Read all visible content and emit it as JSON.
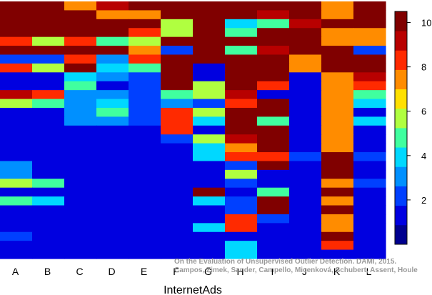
{
  "chart_data": {
    "type": "heatmap",
    "xlabel": "InternetAds",
    "columns": [
      "A",
      "B",
      "C",
      "D",
      "E",
      "F",
      "G",
      "H",
      "I",
      "J",
      "K",
      "L"
    ],
    "colorbar": {
      "min": 0,
      "max": 10.5,
      "ticks": [
        2,
        4,
        6,
        8,
        10
      ]
    },
    "palette": [
      "#00008f",
      "#0000e0",
      "#0040ff",
      "#0090ff",
      "#00d8ff",
      "#40ff9f",
      "#b0ff40",
      "#ffe000",
      "#ff8c00",
      "#ff2a00",
      "#b80000",
      "#800000"
    ],
    "rows": [
      [
        10.5,
        10.5,
        7,
        9.5,
        10.5,
        10.5,
        10.5,
        10.5,
        10.5,
        10.5,
        7,
        10.5
      ],
      [
        10.5,
        10.5,
        10.5,
        7,
        7,
        10.5,
        10.5,
        10.5,
        9.5,
        10.5,
        7,
        10.5
      ],
      [
        10.5,
        10.5,
        10.5,
        10.5,
        10.5,
        6,
        10.5,
        4,
        5,
        9.5,
        10.5,
        10.5
      ],
      [
        10.5,
        10.5,
        10.5,
        10.5,
        8,
        6,
        10.5,
        5,
        10.5,
        10.5,
        7,
        7
      ],
      [
        8,
        6,
        8,
        5,
        6,
        10.5,
        10.5,
        10.5,
        10.5,
        10.5,
        7,
        7
      ],
      [
        10.5,
        10.5,
        10.5,
        10.5,
        7,
        2.5,
        10.5,
        5,
        9.5,
        10.5,
        10.5,
        2.5
      ],
      [
        2.5,
        2.5,
        8,
        3,
        8,
        10.5,
        10.5,
        10.5,
        10.5,
        7,
        10.5,
        10.5
      ],
      [
        8,
        6,
        10.5,
        4,
        5,
        10.5,
        1.5,
        10.5,
        10.5,
        7,
        10.5,
        10.5
      ],
      [
        1,
        1,
        4,
        3,
        2,
        10.5,
        1.5,
        10.5,
        10.5,
        1,
        7,
        9.5
      ],
      [
        1,
        1,
        5,
        1.5,
        2,
        10.5,
        6,
        10.5,
        8,
        1,
        7,
        8
      ],
      [
        9.5,
        8,
        3,
        3,
        2,
        5,
        6,
        9.5,
        1,
        1.5,
        7,
        5
      ],
      [
        6,
        5,
        3,
        4,
        2,
        3,
        2,
        8,
        10.5,
        1.5,
        7,
        4
      ],
      [
        1,
        1,
        3,
        5,
        2,
        8,
        6,
        10.5,
        10.5,
        1,
        7,
        1.5
      ],
      [
        1,
        1,
        3,
        3,
        2,
        8,
        4,
        10.5,
        5,
        1,
        7,
        4
      ],
      [
        1.5,
        1,
        1.5,
        1.5,
        1,
        8,
        1.5,
        10.5,
        10.5,
        1,
        7,
        1.5
      ],
      [
        1,
        1,
        1,
        1.5,
        1,
        2,
        6,
        9.5,
        10.5,
        1,
        7,
        1
      ],
      [
        1,
        1,
        1.5,
        1.5,
        1.5,
        1,
        4,
        7,
        10.5,
        1.5,
        7,
        1
      ],
      [
        1,
        1,
        1,
        1,
        1,
        1,
        4,
        8,
        8,
        2.5,
        10.5,
        2
      ],
      [
        3,
        1.5,
        1.5,
        1,
        1,
        1.5,
        1.5,
        2,
        10.5,
        1,
        10.5,
        1.5
      ],
      [
        3,
        1.5,
        1.5,
        1.5,
        1.5,
        1.5,
        1.5,
        6,
        1,
        1.5,
        10.5,
        1.5
      ],
      [
        6,
        5,
        1.5,
        1.5,
        1.5,
        1.5,
        1.5,
        2.5,
        1,
        1,
        7,
        2.5
      ],
      [
        1,
        1,
        1,
        1,
        1,
        1,
        10.5,
        1.5,
        5,
        1,
        10.5,
        1
      ],
      [
        5,
        4,
        1.5,
        1.5,
        1,
        1.5,
        4,
        2.5,
        10.5,
        1,
        7,
        1.5
      ],
      [
        1,
        1,
        1,
        1,
        1,
        1,
        1.5,
        2.5,
        10.5,
        1,
        10.5,
        1
      ],
      [
        1,
        1,
        1,
        1,
        1,
        1,
        1.5,
        8,
        2.5,
        1,
        7,
        1
      ],
      [
        1,
        1,
        1,
        1,
        1,
        1,
        4,
        8,
        1,
        1,
        7,
        1
      ],
      [
        2,
        1,
        1,
        1,
        1,
        1,
        1.5,
        1.5,
        1,
        1,
        10.5,
        1
      ],
      [
        1,
        1,
        1,
        1,
        1,
        1,
        1.5,
        4,
        1,
        1,
        8,
        1
      ],
      [
        1,
        1,
        1,
        1,
        1,
        1,
        1.5,
        4,
        1,
        1,
        1,
        1
      ]
    ]
  },
  "credit": {
    "line1": "On the Evaluation of Unsupervised Outlier Detection. DAMI, 2015.",
    "line2": "Campos, Zimek, Sander, Campello, Micenková, Schubert, Assent, Houle"
  }
}
